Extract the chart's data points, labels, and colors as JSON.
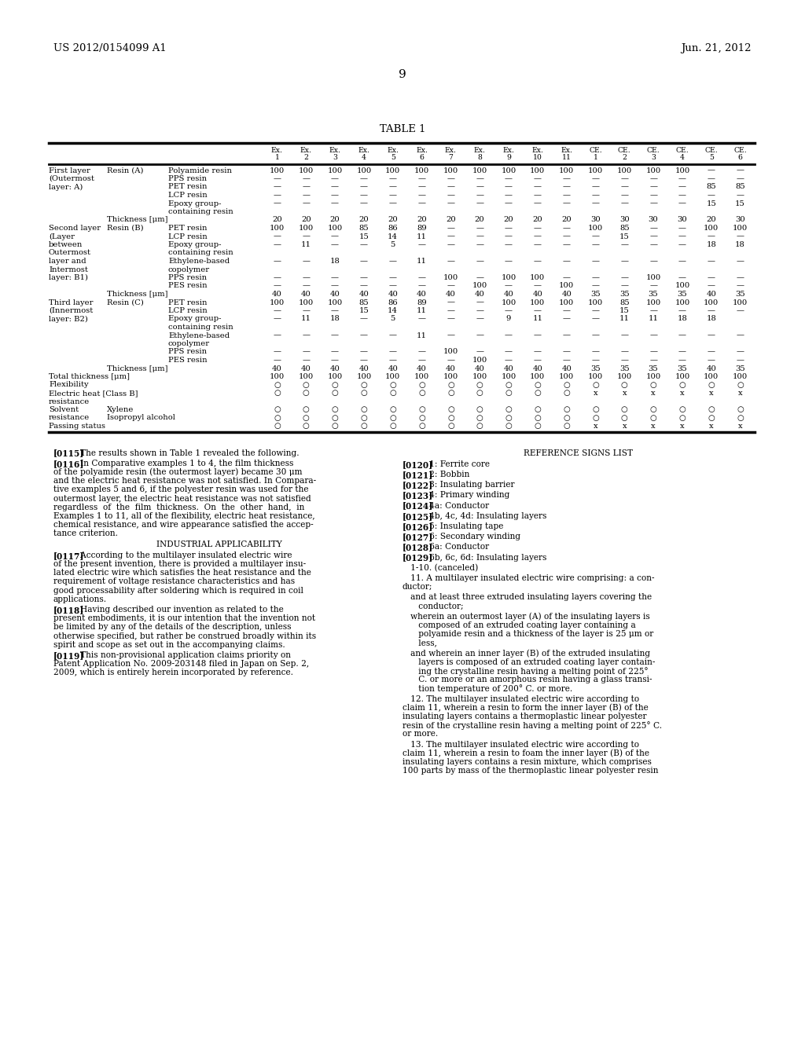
{
  "header_left": "US 2012/0154099 A1",
  "header_right": "Jun. 21, 2012",
  "page_number": "9",
  "table_title": "TABLE 1",
  "bg_color": "#ffffff",
  "text_color": "#000000",
  "font_size": 7.2,
  "col_headers_row1": [
    "Ex.",
    "Ex.",
    "Ex.",
    "Ex.",
    "Ex.",
    "Ex.",
    "Ex.",
    "Ex.",
    "Ex.",
    "Ex.",
    "Ex.",
    "CE.",
    "CE.",
    "CE.",
    "CE.",
    "CE.",
    "CE."
  ],
  "col_headers_row2": [
    "1",
    "2",
    "3",
    "4",
    "5",
    "6",
    "7",
    "8",
    "9",
    "10",
    "11",
    "1",
    "2",
    "3",
    "4",
    "5",
    "6"
  ],
  "table_rows": [
    {
      "label1": "First layer",
      "label2": "Resin (A)",
      "label3": "Polyamide resin",
      "values": [
        "100",
        "100",
        "100",
        "100",
        "100",
        "100",
        "100",
        "100",
        "100",
        "100",
        "100",
        "100",
        "100",
        "100",
        "100",
        "—",
        "—"
      ]
    },
    {
      "label1": "(Outermost",
      "label2": "",
      "label3": "PPS resin",
      "values": [
        "—",
        "—",
        "—",
        "—",
        "—",
        "—",
        "—",
        "—",
        "—",
        "—",
        "—",
        "—",
        "—",
        "—",
        "—",
        "—",
        "—"
      ]
    },
    {
      "label1": "layer: A)",
      "label2": "",
      "label3": "PET resin",
      "values": [
        "—",
        "—",
        "—",
        "—",
        "—",
        "—",
        "—",
        "—",
        "—",
        "—",
        "—",
        "—",
        "—",
        "—",
        "—",
        "85",
        "85"
      ]
    },
    {
      "label1": "",
      "label2": "",
      "label3": "LCP resin",
      "values": [
        "—",
        "—",
        "—",
        "—",
        "—",
        "—",
        "—",
        "—",
        "—",
        "—",
        "—",
        "—",
        "—",
        "—",
        "—",
        "—",
        "—"
      ]
    },
    {
      "label1": "",
      "label2": "",
      "label3": "Epoxy group-",
      "values": [
        "—",
        "—",
        "—",
        "—",
        "—",
        "—",
        "—",
        "—",
        "—",
        "—",
        "—",
        "—",
        "—",
        "—",
        "—",
        "15",
        "15"
      ]
    },
    {
      "label1": "",
      "label2": "",
      "label3": "containing resin",
      "values": [
        "",
        "",
        "",
        "",
        "",
        "",
        "",
        "",
        "",
        "",
        "",
        "",
        "",
        "",
        "",
        "",
        ""
      ]
    },
    {
      "label1": "",
      "label2": "Thickness [μm]",
      "label3": "",
      "values": [
        "20",
        "20",
        "20",
        "20",
        "20",
        "20",
        "20",
        "20",
        "20",
        "20",
        "20",
        "30",
        "30",
        "30",
        "30",
        "20",
        "30"
      ]
    },
    {
      "label1": "Second layer",
      "label2": "Resin (B)",
      "label3": "PET resin",
      "values": [
        "100",
        "100",
        "100",
        "85",
        "86",
        "89",
        "—",
        "—",
        "—",
        "—",
        "—",
        "100",
        "85",
        "—",
        "—",
        "100",
        "100"
      ]
    },
    {
      "label1": "(Layer",
      "label2": "",
      "label3": "LCP resin",
      "values": [
        "—",
        "—",
        "—",
        "15",
        "14",
        "11",
        "—",
        "—",
        "—",
        "—",
        "—",
        "—",
        "15",
        "—",
        "—",
        "—",
        "—"
      ]
    },
    {
      "label1": "between",
      "label2": "",
      "label3": "Epoxy group-",
      "values": [
        "—",
        "11",
        "—",
        "—",
        "5",
        "—",
        "—",
        "—",
        "—",
        "—",
        "—",
        "—",
        "—",
        "—",
        "—",
        "18",
        "18"
      ]
    },
    {
      "label1": "Outermost",
      "label2": "",
      "label3": "containing resin",
      "values": [
        "",
        "",
        "",
        "",
        "",
        "",
        "",
        "",
        "",
        "",
        "",
        "",
        "",
        "",
        "",
        "",
        ""
      ]
    },
    {
      "label1": "layer and",
      "label2": "",
      "label3": "Ethylene-based",
      "values": [
        "—",
        "—",
        "18",
        "—",
        "—",
        "11",
        "—",
        "—",
        "—",
        "—",
        "—",
        "—",
        "—",
        "—",
        "—",
        "—",
        "—"
      ]
    },
    {
      "label1": "Intermost",
      "label2": "",
      "label3": "copolymer",
      "values": [
        "",
        "",
        "",
        "",
        "",
        "",
        "",
        "",
        "",
        "",
        "",
        "",
        "",
        "",
        "",
        "",
        ""
      ]
    },
    {
      "label1": "layer: B1)",
      "label2": "",
      "label3": "PPS resin",
      "values": [
        "—",
        "—",
        "—",
        "—",
        "—",
        "—",
        "100",
        "—",
        "100",
        "100",
        "—",
        "—",
        "—",
        "100",
        "—",
        "—",
        "—"
      ]
    },
    {
      "label1": "",
      "label2": "",
      "label3": "PES resin",
      "values": [
        "—",
        "—",
        "—",
        "—",
        "—",
        "—",
        "—",
        "100",
        "—",
        "—",
        "100",
        "—",
        "—",
        "—",
        "100",
        "—",
        "—"
      ]
    },
    {
      "label1": "",
      "label2": "Thickness [μm]",
      "label3": "",
      "values": [
        "40",
        "40",
        "40",
        "40",
        "40",
        "40",
        "40",
        "40",
        "40",
        "40",
        "40",
        "35",
        "35",
        "35",
        "35",
        "40",
        "35"
      ]
    },
    {
      "label1": "Third layer",
      "label2": "Resin (C)",
      "label3": "PET resin",
      "values": [
        "100",
        "100",
        "100",
        "85",
        "86",
        "89",
        "—",
        "—",
        "100",
        "100",
        "100",
        "100",
        "85",
        "100",
        "100",
        "100",
        "100"
      ]
    },
    {
      "label1": "(Innermost",
      "label2": "",
      "label3": "LCP resin",
      "values": [
        "—",
        "—",
        "—",
        "15",
        "14",
        "11",
        "—",
        "—",
        "—",
        "—",
        "—",
        "—",
        "15",
        "—",
        "—",
        "—",
        "—"
      ]
    },
    {
      "label1": "layer: B2)",
      "label2": "",
      "label3": "Epoxy group-",
      "values": [
        "—",
        "11",
        "18",
        "—",
        "5",
        "—",
        "—",
        "—",
        "9",
        "11",
        "—",
        "—",
        "11",
        "11",
        "18",
        "18",
        ""
      ]
    },
    {
      "label1": "",
      "label2": "",
      "label3": "containing resin",
      "values": [
        "",
        "",
        "",
        "",
        "",
        "",
        "",
        "",
        "",
        "",
        "",
        "",
        "",
        "",
        "",
        "",
        ""
      ]
    },
    {
      "label1": "",
      "label2": "",
      "label3": "Ethylene-based",
      "values": [
        "—",
        "—",
        "—",
        "—",
        "—",
        "11",
        "—",
        "—",
        "—",
        "—",
        "—",
        "—",
        "—",
        "—",
        "—",
        "—",
        "—"
      ]
    },
    {
      "label1": "",
      "label2": "",
      "label3": "copolymer",
      "values": [
        "",
        "",
        "",
        "",
        "",
        "",
        "",
        "",
        "",
        "",
        "",
        "",
        "",
        "",
        "",
        "",
        ""
      ]
    },
    {
      "label1": "",
      "label2": "",
      "label3": "PPS resin",
      "values": [
        "—",
        "—",
        "—",
        "—",
        "—",
        "—",
        "100",
        "—",
        "—",
        "—",
        "—",
        "—",
        "—",
        "—",
        "—",
        "—",
        "—"
      ]
    },
    {
      "label1": "",
      "label2": "",
      "label3": "PES resin",
      "values": [
        "—",
        "—",
        "—",
        "—",
        "—",
        "—",
        "—",
        "100",
        "—",
        "—",
        "—",
        "—",
        "—",
        "—",
        "—",
        "—",
        "—"
      ]
    },
    {
      "label1": "",
      "label2": "Thickness [μm]",
      "label3": "",
      "values": [
        "40",
        "40",
        "40",
        "40",
        "40",
        "40",
        "40",
        "40",
        "40",
        "40",
        "40",
        "35",
        "35",
        "35",
        "35",
        "40",
        "35"
      ]
    },
    {
      "label1": "Total thickness [μm]",
      "label2": "",
      "label3": "",
      "values": [
        "100",
        "100",
        "100",
        "100",
        "100",
        "100",
        "100",
        "100",
        "100",
        "100",
        "100",
        "100",
        "100",
        "100",
        "100",
        "100",
        "100"
      ]
    },
    {
      "label1": "Flexibility",
      "label2": "",
      "label3": "",
      "values": [
        "○",
        "○",
        "○",
        "○",
        "○",
        "○",
        "○",
        "○",
        "○",
        "○",
        "○",
        "○",
        "○",
        "○",
        "○",
        "○",
        "○"
      ]
    },
    {
      "label1": "Electric heat [Class B]",
      "label2": "",
      "label3": "",
      "values": [
        "○",
        "○",
        "○",
        "○",
        "○",
        "○",
        "○",
        "○",
        "○",
        "○",
        "○",
        "x",
        "x",
        "x",
        "x",
        "x",
        "x"
      ]
    },
    {
      "label1": "resistance",
      "label2": "",
      "label3": "",
      "values": [
        "",
        "",
        "",
        "",
        "",
        "",
        "",
        "",
        "",
        "",
        "",
        "",
        "",
        "",
        "",
        "",
        ""
      ]
    },
    {
      "label1": "Solvent",
      "label2": "Xylene",
      "label3": "",
      "values": [
        "○",
        "○",
        "○",
        "○",
        "○",
        "○",
        "○",
        "○",
        "○",
        "○",
        "○",
        "○",
        "○",
        "○",
        "○",
        "○",
        "○"
      ]
    },
    {
      "label1": "resistance",
      "label2": "Isopropyl alcohol",
      "label3": "",
      "values": [
        "○",
        "○",
        "○",
        "○",
        "○",
        "○",
        "○",
        "○",
        "○",
        "○",
        "○",
        "○",
        "○",
        "○",
        "○",
        "○",
        "○"
      ]
    },
    {
      "label1": "Passing status",
      "label2": "",
      "label3": "",
      "values": [
        "○",
        "○",
        "○",
        "○",
        "○",
        "○",
        "○",
        "○",
        "○",
        "○",
        "○",
        "x",
        "x",
        "x",
        "x",
        "x",
        "x"
      ]
    }
  ],
  "left_col_paragraphs": [
    {
      "tag": "[0115]",
      "text": "   The results shown in Table 1 revealed the following."
    },
    {
      "tag": "[0116]",
      "text": "   In Comparative examples 1 to 4, the film thickness\nof the polyamide resin (the outermost layer) became 30 μm\nand the electric heat resistance was not satisfied. In Compara-\ntive examples 5 and 6, if the polyester resin was used for the\noutermost layer, the electric heat resistance was not satisfied\nregardless  of  the  film  thickness.  On  the  other  hand,  in\nExamples 1 to 11, all of the flexibility, electric heat resistance,\nchemical resistance, and wire appearance satisfied the accep-\ntance criterion."
    },
    {
      "tag": "HEADING",
      "text": "INDUSTRIAL APPLICABILITY"
    },
    {
      "tag": "[0117]",
      "text": "   According to the multilayer insulated electric wire\nof the present invention, there is provided a multilayer insu-\nlated electric wire which satisfies the heat resistance and the\nrequirement of voltage resistance characteristics and has\ngood processability after soldering which is required in coil\napplications."
    },
    {
      "tag": "[0118]",
      "text": "   Having described our invention as related to the\npresent embodiments, it is our intention that the invention not\nbe limited by any of the details of the description, unless\notherwise specified, but rather be construed broadly within its\nspirit and scope as set out in the accompanying claims."
    },
    {
      "tag": "[0119]",
      "text": "   This non-provisional application claims priority on\nPatent Application No. 2009-203148 filed in Japan on Sep. 2,\n2009, which is entirely herein incorporated by reference."
    }
  ],
  "right_col_paragraphs": [
    {
      "tag": "HEADING",
      "text": "REFERENCE SIGNS LIST"
    },
    {
      "tag": "[0120]",
      "text": "   1: Ferrite core"
    },
    {
      "tag": "[0121]",
      "text": "   2: Bobbin"
    },
    {
      "tag": "[0122]",
      "text": "   3: Insulating barrier"
    },
    {
      "tag": "[0123]",
      "text": "   4: Primary winding"
    },
    {
      "tag": "[0124]",
      "text": "   4a: Conductor"
    },
    {
      "tag": "[0125]",
      "text": "   4b, 4c, 4d: Insulating layers"
    },
    {
      "tag": "[0126]",
      "text": "   5: Insulating tape"
    },
    {
      "tag": "[0127]",
      "text": "   6: Secondary winding"
    },
    {
      "tag": "[0128]",
      "text": "   6a: Conductor"
    },
    {
      "tag": "[0129]",
      "text": "   6b, 6c, 6d: Insulating layers"
    },
    {
      "tag": "PLAIN",
      "text": "   1-10. (canceled)"
    },
    {
      "tag": "PLAIN",
      "text": "   11. A multilayer insulated electric wire comprising: a con-\nductor;"
    },
    {
      "tag": "PLAIN",
      "text": "   and at least three extruded insulating layers covering the\n      conductor;"
    },
    {
      "tag": "PLAIN",
      "text": "   wherein an outermost layer (A) of the insulating layers is\n      composed of an extruded coating layer containing a\n      polyamide resin and a thickness of the layer is 25 μm or\n      less,"
    },
    {
      "tag": "PLAIN",
      "text": "   and wherein an inner layer (B) of the extruded insulating\n      layers is composed of an extruded coating layer contain-\n      ing the crystalline resin having a melting point of 225°\n      C. or more or an amorphous resin having a glass transi-\n      tion temperature of 200° C. or more."
    },
    {
      "tag": "PLAIN",
      "text": "   12. The multilayer insulated electric wire according to\nclaim 11, wherein a resin to form the inner layer (B) of the\ninsulating layers contains a thermoplastic linear polyester\nresin of the crystalline resin having a melting point of 225° C.\nor more."
    },
    {
      "tag": "PLAIN",
      "text": "   13. The multilayer insulated electric wire according to\nclaim 11, wherein a resin to foam the inner layer (B) of the\ninsulating layers contains a resin mixture, which comprises\n100 parts by mass of the thermoplastic linear polyester resin"
    }
  ]
}
